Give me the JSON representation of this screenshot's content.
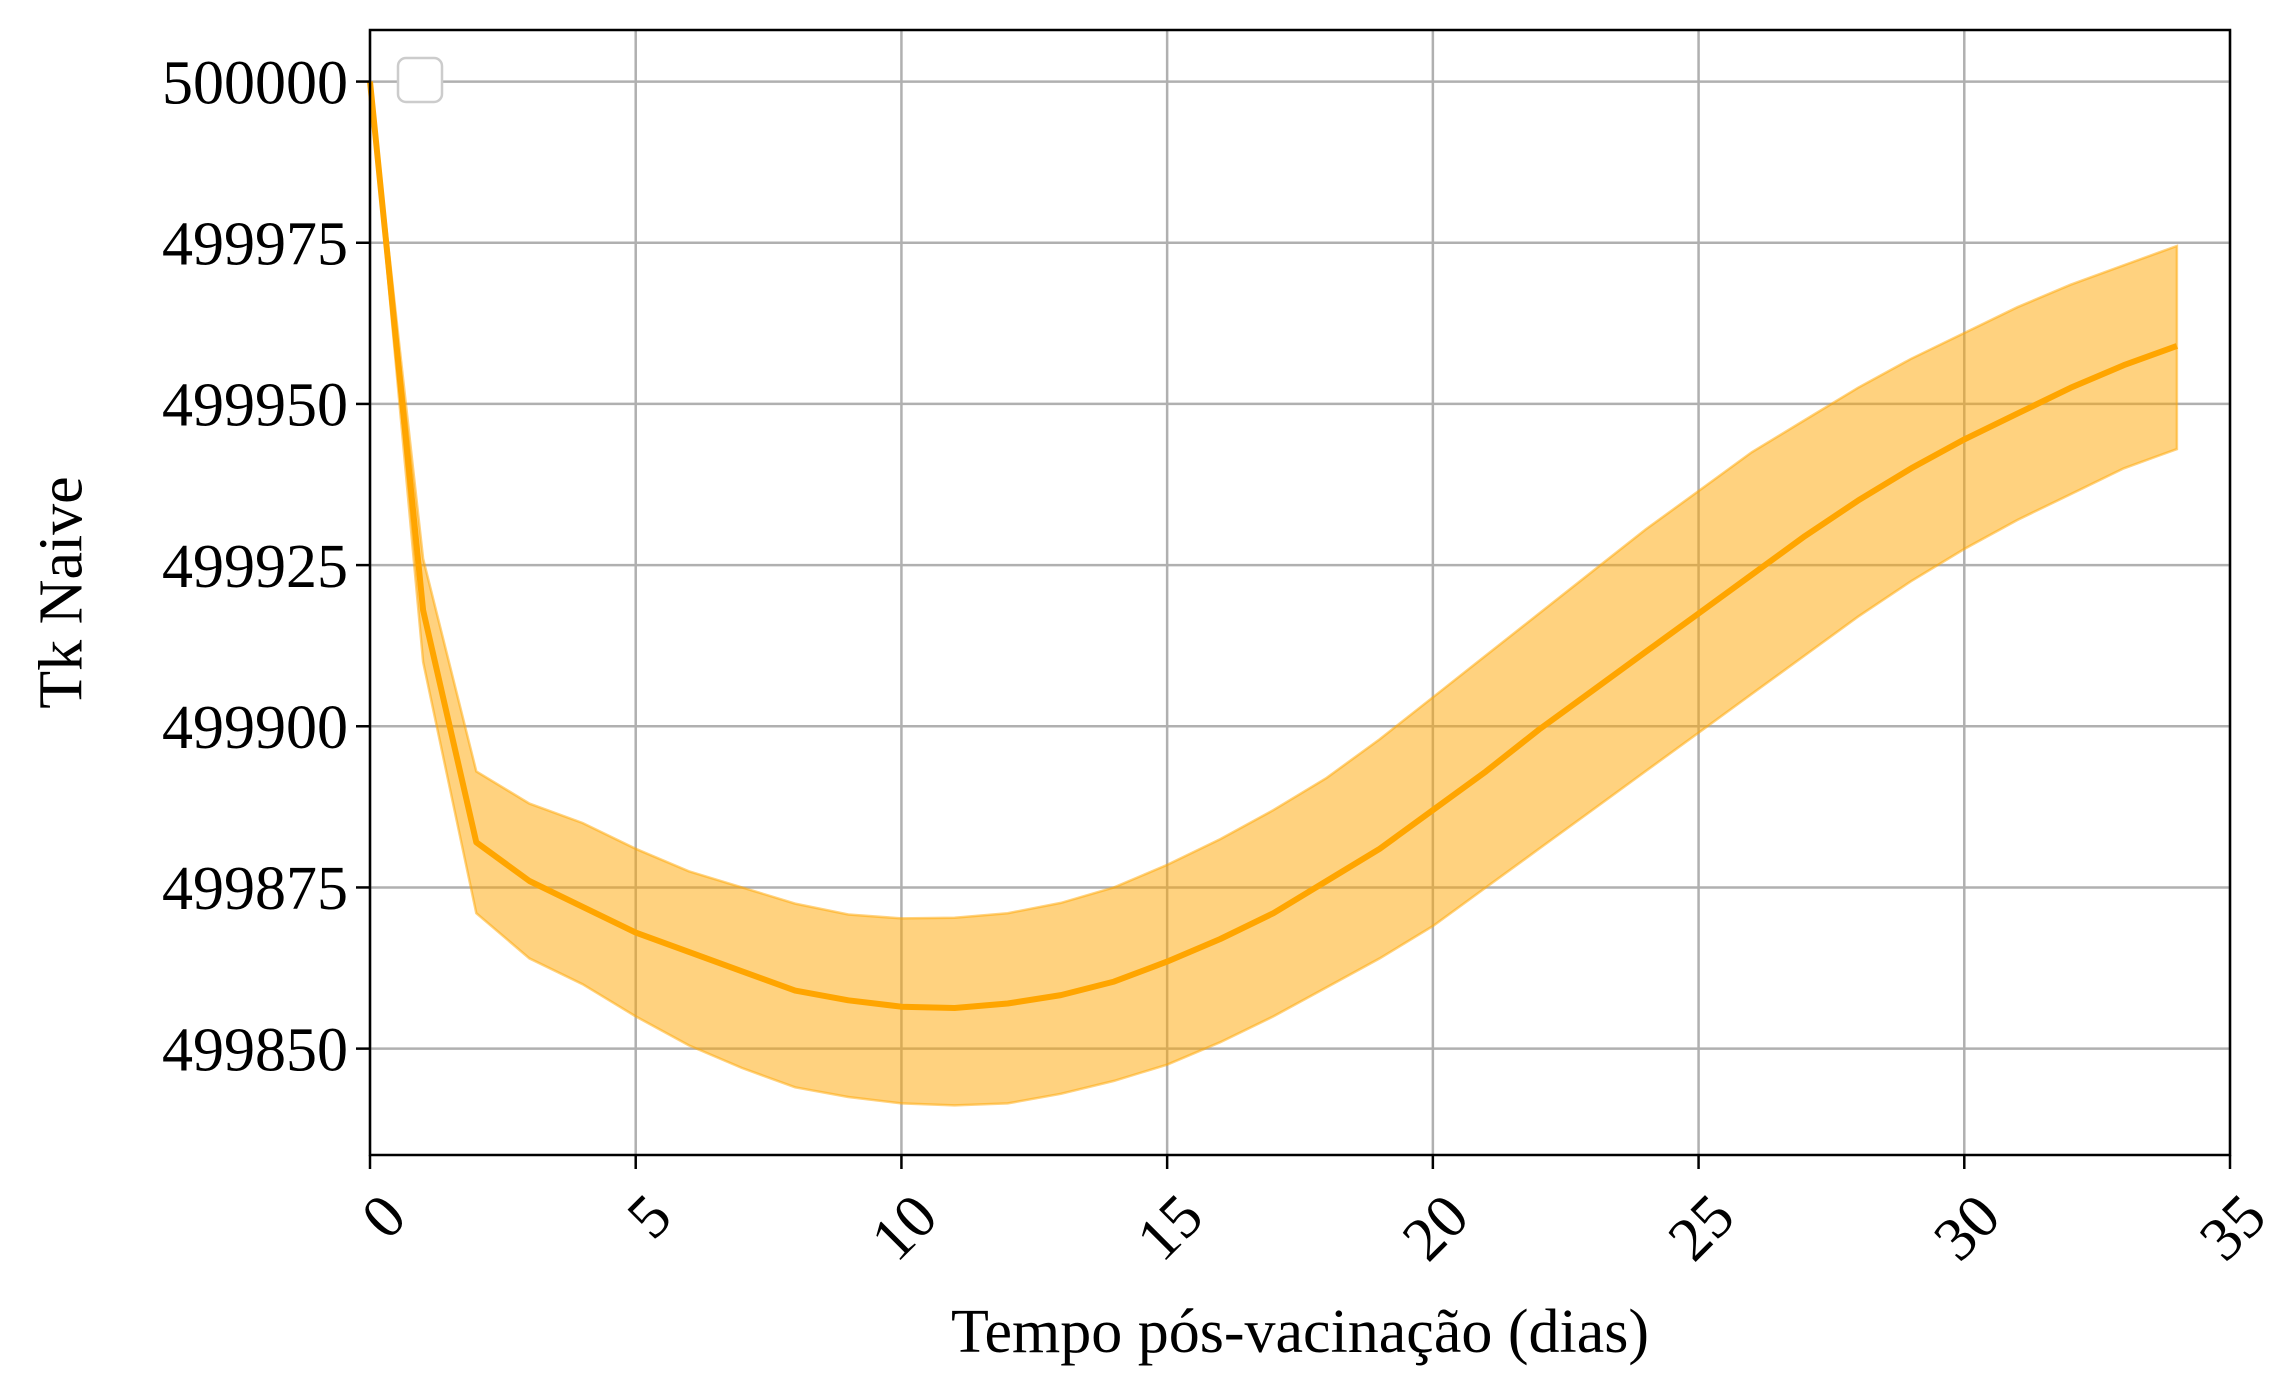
{
  "chart_data": {
    "type": "line",
    "title": "",
    "xlabel": "Tempo pós-vacinação (dias)",
    "ylabel": "Tk Naive",
    "xlim": [
      0,
      35
    ],
    "ylim": [
      499833.5,
      500008
    ],
    "xticks": [
      0,
      5,
      10,
      15,
      20,
      25,
      30,
      35
    ],
    "yticks": [
      499850,
      499875,
      499900,
      499925,
      499950,
      499975,
      500000
    ],
    "xtick_labels": [
      "0",
      "5",
      "10",
      "15",
      "20",
      "25",
      "30",
      "35"
    ],
    "ytick_labels": [
      "499850",
      "499875",
      "499900",
      "499925",
      "499950",
      "499975",
      "500000"
    ],
    "grid": true,
    "legend": "top-left, empty",
    "colors": {
      "line": "#ffa500",
      "band": "#ffa500"
    },
    "series": [
      {
        "x": [
          0,
          1,
          2,
          3,
          4,
          5,
          6,
          7,
          8,
          9,
          10,
          11,
          12,
          13,
          14,
          15,
          16,
          17,
          18,
          19,
          20,
          21,
          22,
          23,
          24,
          25,
          26,
          27,
          28,
          29,
          30,
          31,
          32,
          33,
          34
        ],
        "y": [
          500000,
          499918,
          499882,
          499876,
          499872,
          499868,
          499865,
          499862,
          499859,
          499857.5,
          499856.5,
          499856.3,
          499857,
          499858.3,
          499860.4,
          499863.5,
          499867,
          499871,
          499876,
          499881,
          499887,
          499893,
          499899.5,
          499905.5,
          499911.5,
          499917.5,
          499923.5,
          499929.5,
          499935,
          499940,
          499944.5,
          499948.5,
          499952.5,
          499956,
          499959
        ],
        "lower": [
          500000,
          499910,
          499871,
          499864,
          499860,
          499855,
          499850.5,
          499847,
          499844,
          499842.5,
          499841.5,
          499841.2,
          499841.5,
          499843,
          499845,
          499847.5,
          499851,
          499855,
          499859.5,
          499864,
          499869,
          499875,
          499881,
          499887,
          499893,
          499899,
          499905,
          499911,
          499917,
          499922.5,
          499927.5,
          499932,
          499936,
          499940,
          499943
        ],
        "upper": [
          500000,
          499926,
          499893,
          499888,
          499885,
          499881,
          499877.5,
          499875,
          499872.5,
          499870.8,
          499870.2,
          499870.3,
          499871,
          499872.6,
          499875,
          499878.5,
          499882.5,
          499887,
          499892,
          499898,
          499904.5,
          499911,
          499917.5,
          499924,
          499930.5,
          499936.5,
          499942.5,
          499947.5,
          499952.5,
          499957,
          499961,
          499965,
          499968.5,
          499971.5,
          499974.5
        ]
      }
    ]
  }
}
